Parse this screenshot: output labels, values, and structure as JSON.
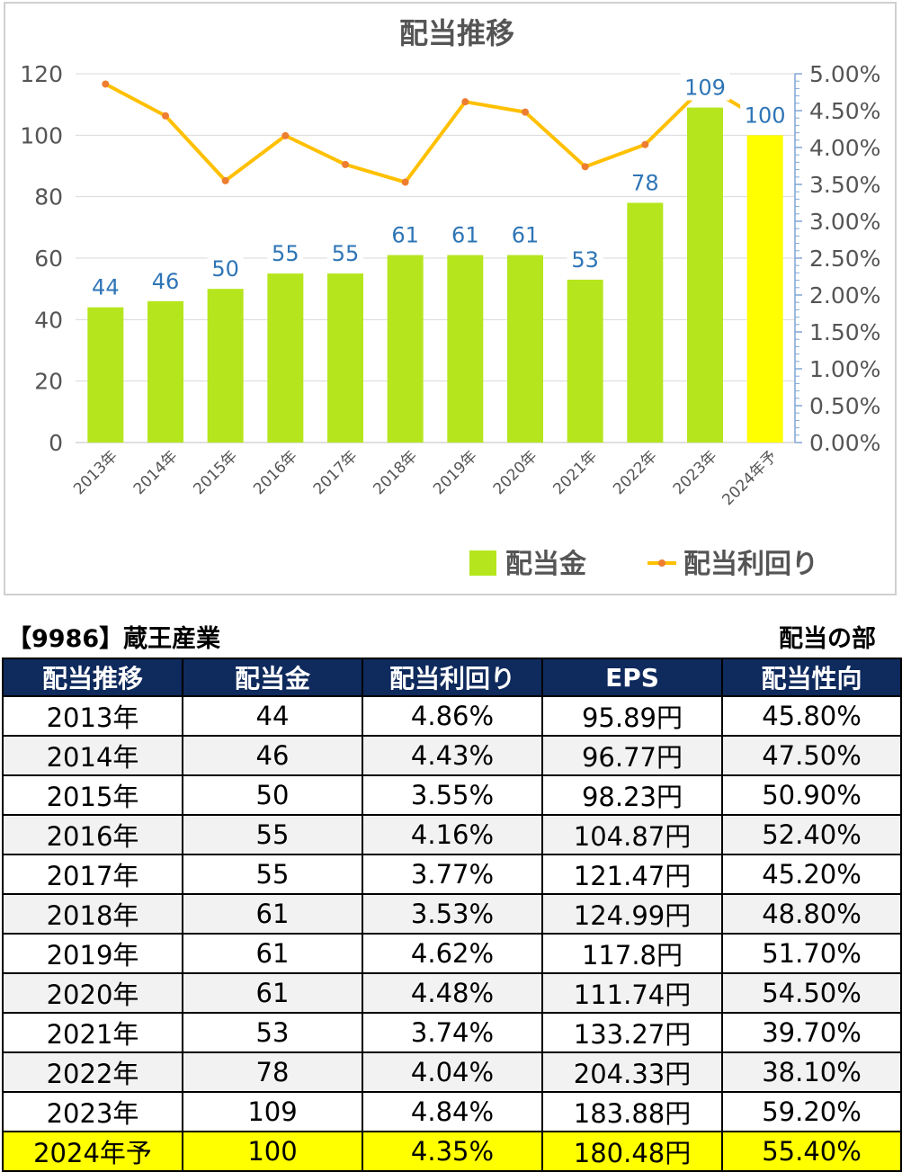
{
  "chart_data": {
    "type": "bar+line",
    "title": "配当推移",
    "categories": [
      "2013年",
      "2014年",
      "2015年",
      "2016年",
      "2017年",
      "2018年",
      "2019年",
      "2020年",
      "2021年",
      "2022年",
      "2023年",
      "2024年予"
    ],
    "series": [
      {
        "name": "配当金",
        "type": "bar",
        "axis": "left",
        "color": "#b5e61d",
        "highlight_color": "#ffff00",
        "highlight_index": 11,
        "values": [
          44,
          46,
          50,
          55,
          55,
          61,
          61,
          61,
          53,
          78,
          109,
          100
        ]
      },
      {
        "name": "配当利回り",
        "type": "line",
        "axis": "right",
        "color": "#ffc000",
        "marker_color": "#ed7d31",
        "values": [
          4.86,
          4.43,
          3.55,
          4.16,
          3.77,
          3.53,
          4.62,
          4.48,
          3.74,
          4.04,
          4.84,
          4.35
        ]
      }
    ],
    "y_left": {
      "min": 0,
      "max": 120,
      "ticks": [
        "0",
        "20",
        "40",
        "60",
        "80",
        "100",
        "120"
      ]
    },
    "y_right": {
      "min": 0,
      "max": 5,
      "ticks": [
        "0.00%",
        "0.50%",
        "1.00%",
        "1.50%",
        "2.00%",
        "2.50%",
        "3.00%",
        "3.50%",
        "4.00%",
        "4.50%",
        "5.00%"
      ]
    },
    "legend_position": "bottom-right",
    "grid": true
  },
  "header": {
    "company": "【9986】蔵王産業",
    "section": "配当の部"
  },
  "table": {
    "columns": [
      "配当推移",
      "配当金",
      "配当利回り",
      "EPS",
      "配当性向"
    ],
    "rows": [
      [
        "2013年",
        "44",
        "4.86%",
        "95.89円",
        "45.80%"
      ],
      [
        "2014年",
        "46",
        "4.43%",
        "96.77円",
        "47.50%"
      ],
      [
        "2015年",
        "50",
        "3.55%",
        "98.23円",
        "50.90%"
      ],
      [
        "2016年",
        "55",
        "4.16%",
        "104.87円",
        "52.40%"
      ],
      [
        "2017年",
        "55",
        "3.77%",
        "121.47円",
        "45.20%"
      ],
      [
        "2018年",
        "61",
        "3.53%",
        "124.99円",
        "48.80%"
      ],
      [
        "2019年",
        "61",
        "4.62%",
        "117.8円",
        "51.70%"
      ],
      [
        "2020年",
        "61",
        "4.48%",
        "111.74円",
        "54.50%"
      ],
      [
        "2021年",
        "53",
        "3.74%",
        "133.27円",
        "39.70%"
      ],
      [
        "2022年",
        "78",
        "4.04%",
        "204.33円",
        "38.10%"
      ],
      [
        "2023年",
        "109",
        "4.84%",
        "183.88円",
        "59.20%"
      ],
      [
        "2024年予",
        "100",
        "4.35%",
        "180.48円",
        "55.40%"
      ]
    ],
    "header_color": "#0f2a5c",
    "highlight_color": "#ffff00"
  }
}
